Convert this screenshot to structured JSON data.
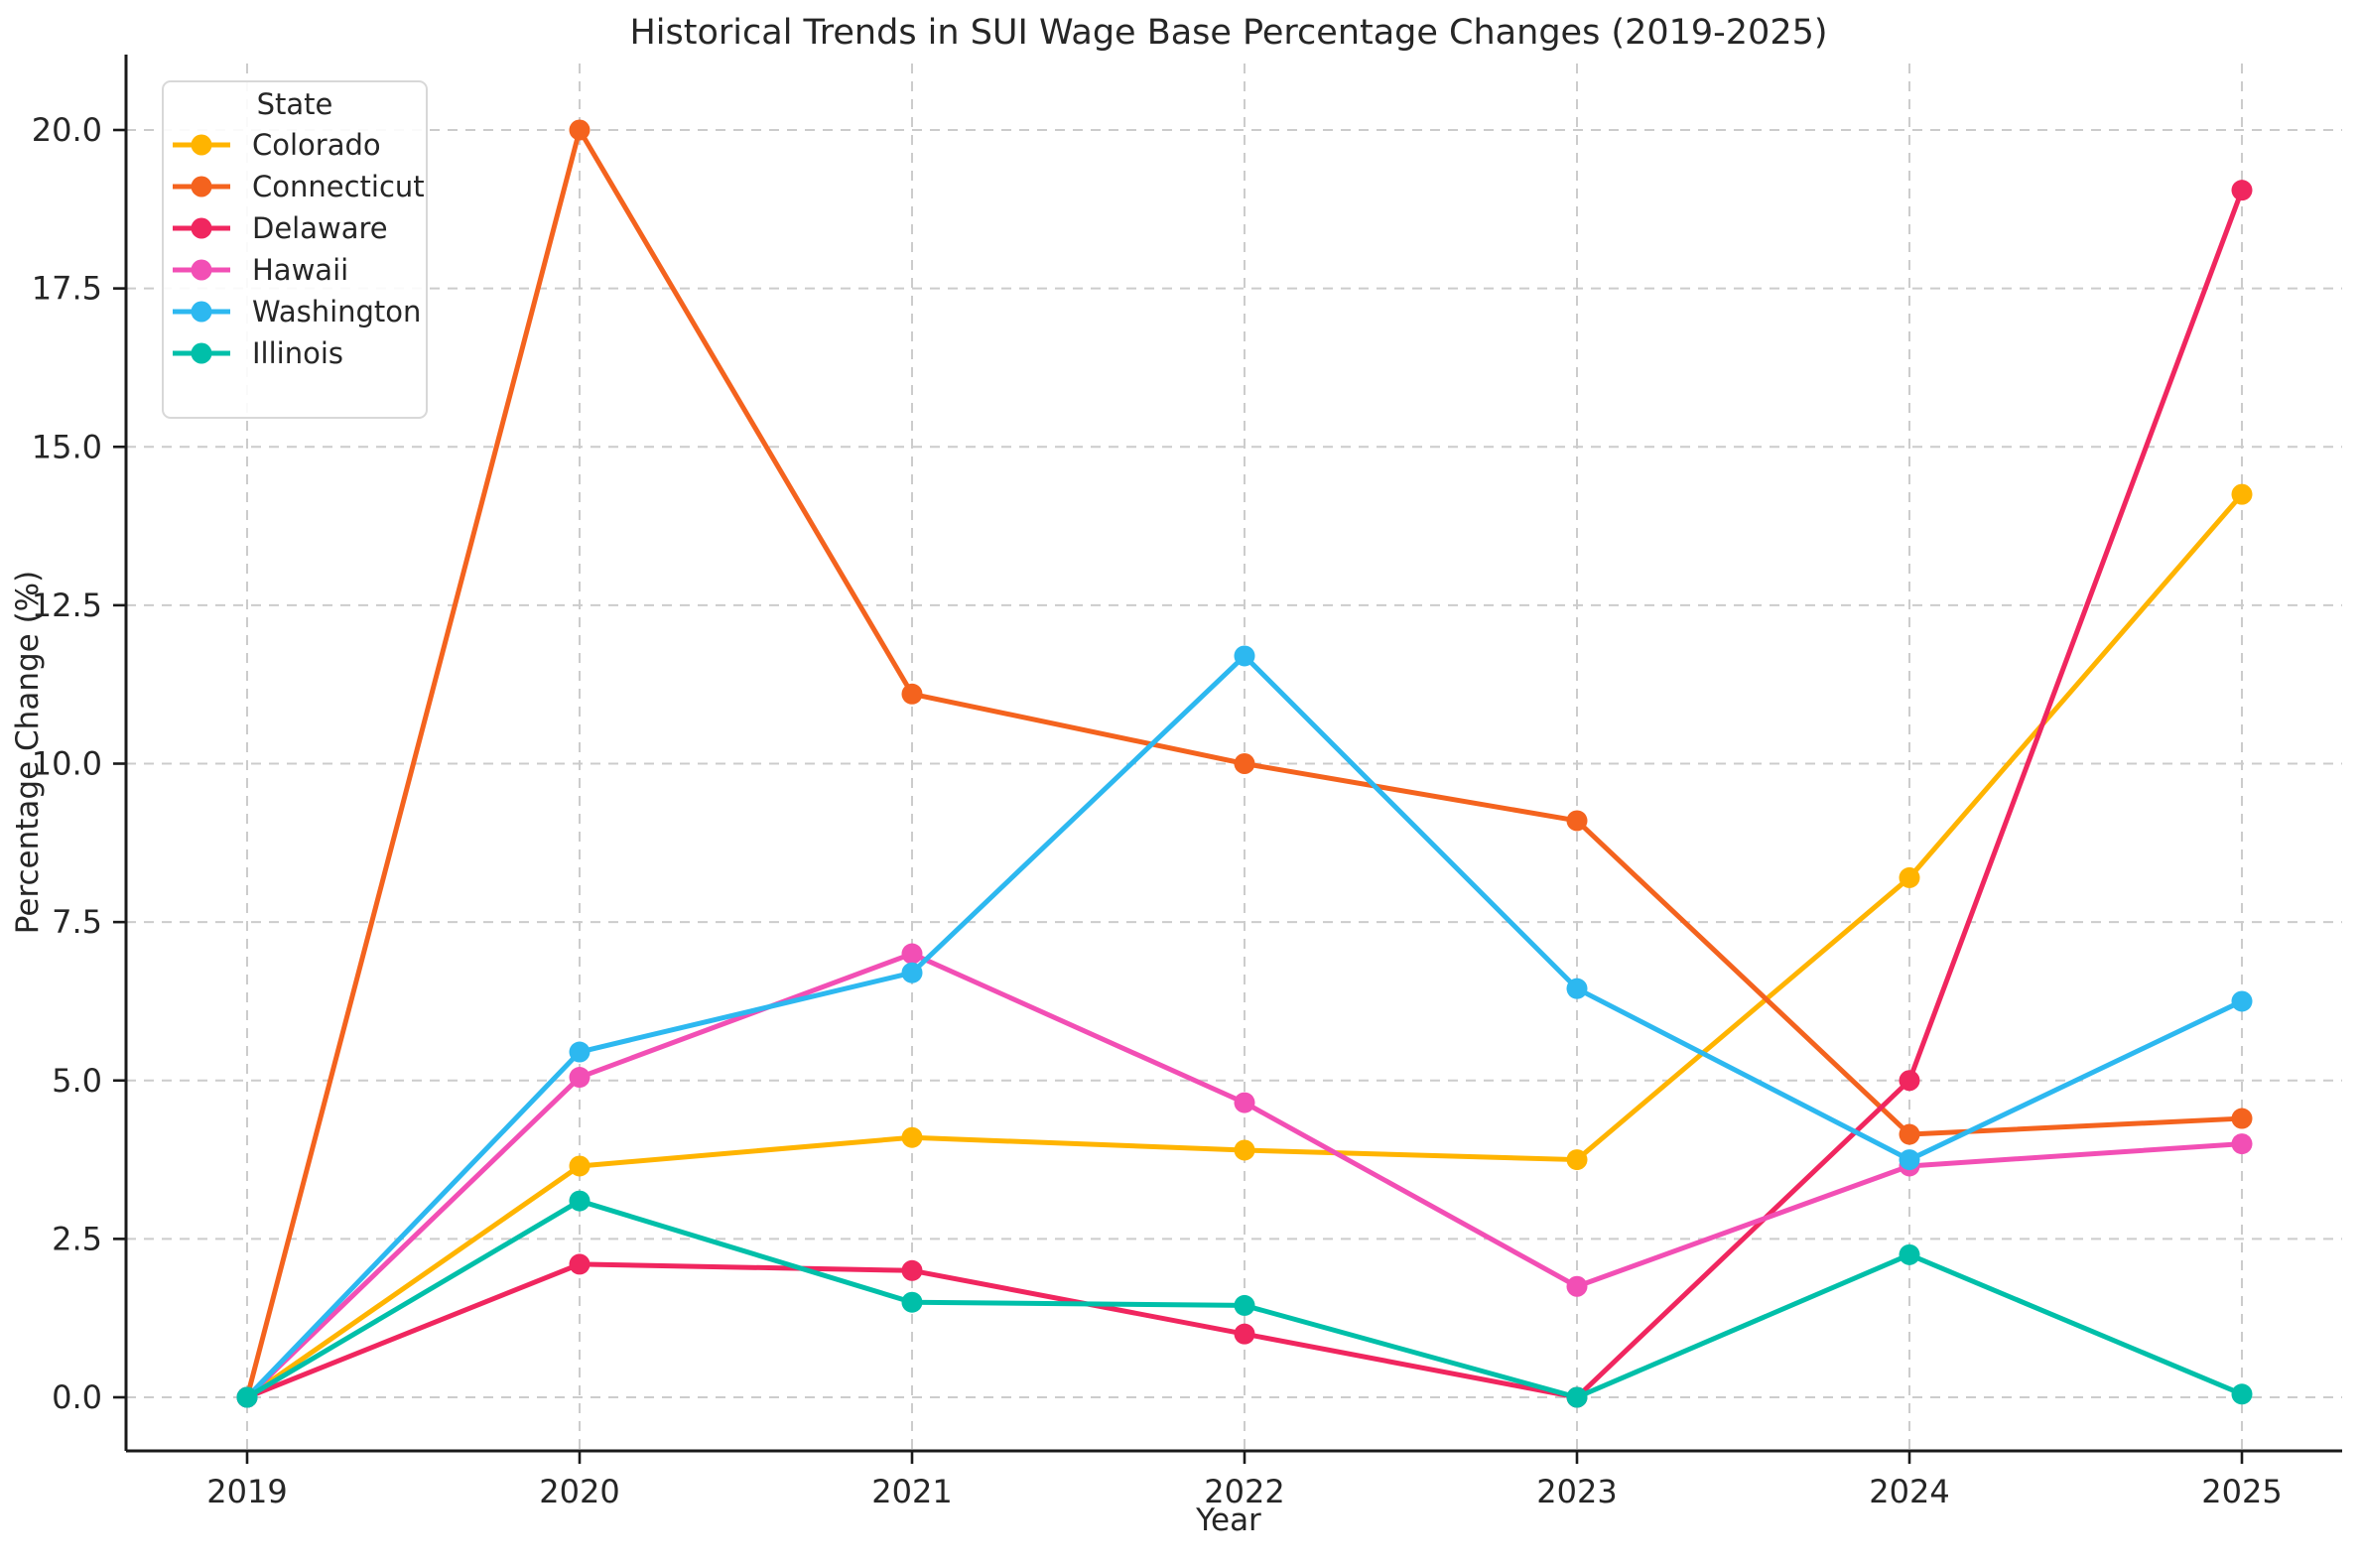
{
  "chart_data": {
    "type": "line",
    "title": "Historical Trends in SUI Wage Base Percentage Changes (2019-2025)",
    "xlabel": "Year",
    "ylabel": "Percentage Change (%)",
    "legend_title": "State",
    "legend_position": "upper left",
    "grid": true,
    "grid_style": "dashed",
    "categories": [
      "2019",
      "2020",
      "2021",
      "2022",
      "2023",
      "2024",
      "2025"
    ],
    "yticks": [
      "0.0",
      "2.5",
      "5.0",
      "7.5",
      "10.0",
      "12.5",
      "15.0",
      "17.5",
      "20.0"
    ],
    "ylim": [
      -0.9,
      21.2
    ],
    "marker": "circle",
    "series": [
      {
        "name": "Colorado",
        "color": "#FFB400",
        "values": [
          0.0,
          3.65,
          4.1,
          3.9,
          3.75,
          8.2,
          14.25
        ]
      },
      {
        "name": "Connecticut",
        "color": "#F4631E",
        "values": [
          0.0,
          20.0,
          11.1,
          10.0,
          9.1,
          4.15,
          4.4
        ]
      },
      {
        "name": "Delaware",
        "color": "#F0265F",
        "values": [
          0.0,
          2.1,
          2.0,
          1.0,
          0.0,
          5.0,
          19.05
        ]
      },
      {
        "name": "Hawaii",
        "color": "#F24FB5",
        "values": [
          0.0,
          5.05,
          7.0,
          4.65,
          1.75,
          3.65,
          4.0
        ]
      },
      {
        "name": "Washington",
        "color": "#2DB8F0",
        "values": [
          0.0,
          5.45,
          6.7,
          11.7,
          6.45,
          3.75,
          6.25
        ]
      },
      {
        "name": "Illinois",
        "color": "#00BFA9",
        "values": [
          0.0,
          3.1,
          1.5,
          1.45,
          0.0,
          2.25,
          0.05
        ]
      }
    ]
  }
}
